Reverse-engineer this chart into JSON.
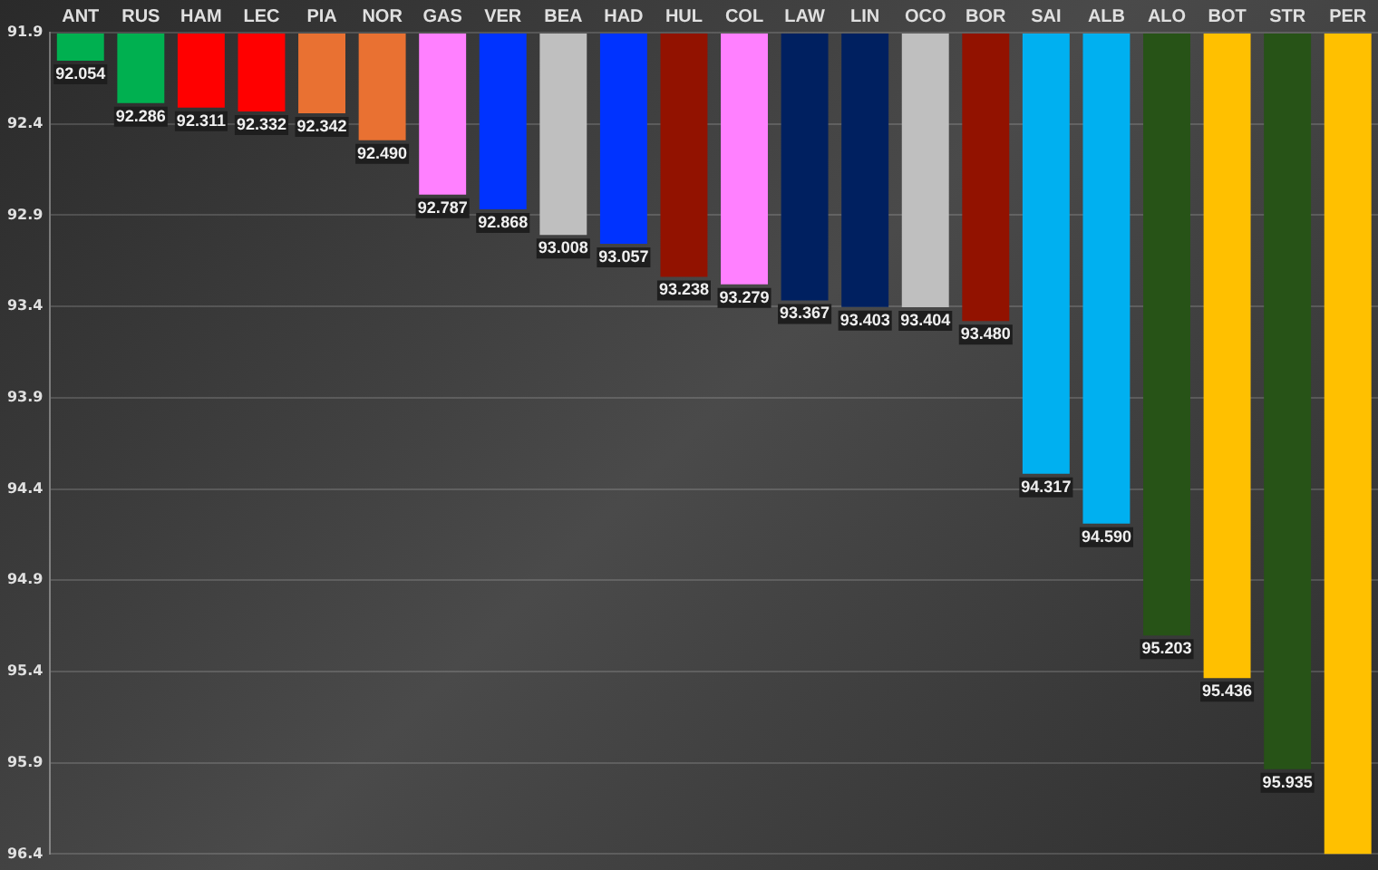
{
  "chart_data": {
    "type": "bar",
    "categories": [
      "ANT",
      "RUS",
      "HAM",
      "LEC",
      "PIA",
      "NOR",
      "GAS",
      "VER",
      "BEA",
      "HAD",
      "HUL",
      "COL",
      "LAW",
      "LIN",
      "OCO",
      "BOR",
      "SAI",
      "ALB",
      "ALO",
      "BOT",
      "STR",
      "PER"
    ],
    "values": [
      92.054,
      92.286,
      92.311,
      92.332,
      92.342,
      92.49,
      92.787,
      92.868,
      93.008,
      93.057,
      93.238,
      93.279,
      93.367,
      93.403,
      93.404,
      93.48,
      94.317,
      94.59,
      95.203,
      95.436,
      95.935,
      96.4
    ],
    "value_labels": [
      "92.054",
      "92.286",
      "92.311",
      "92.332",
      "92.342",
      "92.490",
      "92.787",
      "92.868",
      "93.008",
      "93.057",
      "93.238",
      "93.279",
      "93.367",
      "93.403",
      "93.404",
      "93.480",
      "94.317",
      "94.590",
      "95.203",
      "95.436",
      "95.935",
      null
    ],
    "colors": [
      "#00b050",
      "#00b050",
      "#ff0000",
      "#ff0000",
      "#e97132",
      "#e97132",
      "#ff80ff",
      "#0033ff",
      "#bfbfbf",
      "#0033ff",
      "#921200",
      "#ff80ff",
      "#002060",
      "#002060",
      "#bfbfbf",
      "#921200",
      "#00b0f0",
      "#00b0f0",
      "#275317",
      "#ffc000",
      "#275317",
      "#ffc000"
    ],
    "ylim": [
      96.4,
      91.9
    ],
    "yticks": [
      91.9,
      92.4,
      92.9,
      93.4,
      93.9,
      94.4,
      94.9,
      95.4,
      95.9,
      96.4
    ],
    "grid": "y"
  }
}
